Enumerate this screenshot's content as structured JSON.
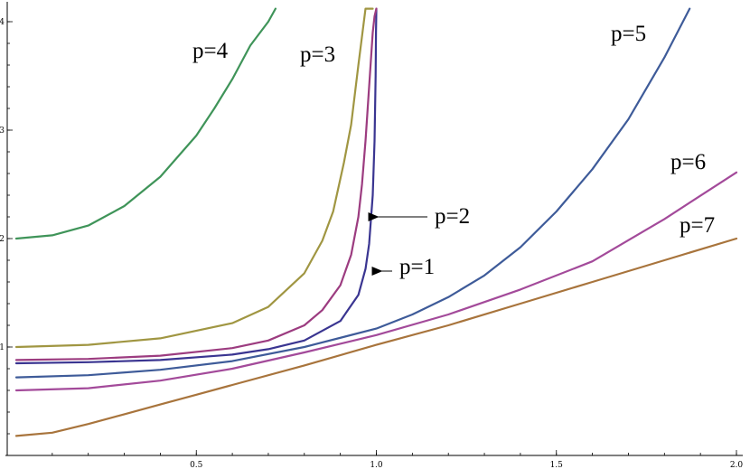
{
  "chart_data": {
    "type": "line",
    "title": "",
    "xlabel": "",
    "ylabel": "",
    "xlim": [
      0,
      2.0
    ],
    "ylim": [
      0,
      4.1
    ],
    "grid": false,
    "x_ticks": [
      {
        "value": 0.5,
        "label": "0.5"
      },
      {
        "value": 1.0,
        "label": "1.0"
      },
      {
        "value": 1.5,
        "label": "1.5"
      },
      {
        "value": 2.0,
        "label": "2.0"
      }
    ],
    "y_ticks": [
      {
        "value": 1,
        "label": "1"
      },
      {
        "value": 2,
        "label": "2"
      },
      {
        "value": 3,
        "label": "3"
      },
      {
        "value": 4,
        "label": "4"
      }
    ],
    "series": [
      {
        "name": "p=1",
        "color": "#3a3591",
        "x": [
          0,
          0.2,
          0.4,
          0.6,
          0.7,
          0.8,
          0.9,
          0.95,
          0.97,
          0.98,
          0.99,
          0.995,
          0.998,
          0.999,
          1.0
        ],
        "y": [
          0.85,
          0.86,
          0.88,
          0.93,
          0.98,
          1.06,
          1.24,
          1.48,
          1.72,
          1.95,
          2.4,
          2.9,
          3.5,
          3.9,
          4.12
        ]
      },
      {
        "name": "p=2",
        "color": "#9c3c80",
        "x": [
          0,
          0.2,
          0.4,
          0.6,
          0.7,
          0.8,
          0.85,
          0.9,
          0.93,
          0.95,
          0.96,
          0.97,
          0.98,
          0.99,
          0.995,
          1.0
        ],
        "y": [
          0.88,
          0.89,
          0.92,
          0.99,
          1.06,
          1.2,
          1.34,
          1.57,
          1.85,
          2.2,
          2.5,
          2.9,
          3.4,
          3.9,
          4.05,
          4.12
        ]
      },
      {
        "name": "p=3",
        "color": "#a09642",
        "x": [
          0,
          0.2,
          0.4,
          0.6,
          0.7,
          0.8,
          0.85,
          0.88,
          0.91,
          0.93,
          0.95,
          0.97,
          0.98,
          0.99,
          0.98
        ],
        "y": [
          1.0,
          1.02,
          1.08,
          1.22,
          1.37,
          1.68,
          1.98,
          2.25,
          2.7,
          3.05,
          3.6,
          4.12,
          4.12,
          4.12,
          4.12
        ]
      },
      {
        "name": "p=4",
        "color": "#3f9459",
        "x": [
          0,
          0.1,
          0.2,
          0.3,
          0.4,
          0.5,
          0.55,
          0.6,
          0.65,
          0.7,
          0.72
        ],
        "y": [
          2.0,
          2.03,
          2.12,
          2.3,
          2.57,
          2.95,
          3.2,
          3.47,
          3.78,
          4.0,
          4.12
        ]
      },
      {
        "name": "p=5",
        "color": "#3e5b99",
        "x": [
          0,
          0.2,
          0.4,
          0.6,
          0.8,
          1.0,
          1.1,
          1.2,
          1.3,
          1.4,
          1.5,
          1.6,
          1.7,
          1.8,
          1.87
        ],
        "y": [
          0.72,
          0.74,
          0.79,
          0.87,
          1.0,
          1.17,
          1.3,
          1.46,
          1.66,
          1.92,
          2.25,
          2.64,
          3.1,
          3.67,
          4.12
        ]
      },
      {
        "name": "p=6",
        "color": "#a34a9a",
        "x": [
          0,
          0.2,
          0.4,
          0.6,
          0.8,
          1.0,
          1.2,
          1.4,
          1.6,
          1.8,
          2.0
        ],
        "y": [
          0.6,
          0.62,
          0.69,
          0.8,
          0.95,
          1.11,
          1.3,
          1.53,
          1.79,
          2.18,
          2.61
        ]
      },
      {
        "name": "p=7",
        "color": "#a8743c",
        "x": [
          0,
          0.1,
          0.2,
          0.3,
          0.4,
          0.5,
          0.6,
          0.8,
          1.0,
          1.2,
          1.4,
          1.6,
          1.8,
          2.0
        ],
        "y": [
          0.18,
          0.21,
          0.29,
          0.38,
          0.47,
          0.56,
          0.65,
          0.83,
          1.02,
          1.2,
          1.4,
          1.6,
          1.8,
          2.0
        ]
      }
    ],
    "annotations": [
      {
        "text": "p=4",
        "series": "p=4"
      },
      {
        "text": "p=3",
        "series": "p=3"
      },
      {
        "text": "p=5",
        "series": "p=5"
      },
      {
        "text": "p=6",
        "series": "p=6"
      },
      {
        "text": "p=7",
        "series": "p=7"
      },
      {
        "text": "p=2",
        "series": "p=2",
        "arrow_to": [
          0.97,
          2.2
        ]
      },
      {
        "text": "p=1",
        "series": "p=1",
        "arrow_to": [
          0.98,
          1.7
        ]
      }
    ]
  }
}
